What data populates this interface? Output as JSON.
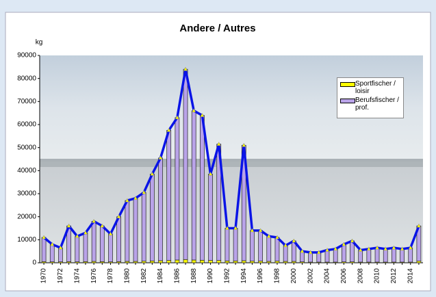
{
  "chart_data": {
    "type": "stacked-bar-line",
    "title": "Andere / Autres",
    "y_label": "kg",
    "categories": [
      "1970",
      null,
      "1972",
      null,
      "1974",
      null,
      "1976",
      null,
      "1978",
      null,
      "1980",
      null,
      "1982",
      null,
      "1984",
      null,
      "1986",
      null,
      "1988",
      null,
      "1990",
      null,
      "1992",
      null,
      "1994",
      null,
      "1996",
      null,
      "1998",
      null,
      "2000",
      null,
      "2002",
      null,
      "2004",
      null,
      "2006",
      null,
      "2008",
      null,
      "2010",
      null,
      "2012",
      null,
      "2014",
      null
    ],
    "series": [
      {
        "name": "Sportfischer / loisir",
        "color": "#ffff00",
        "values": [
          500,
          400,
          400,
          500,
          400,
          500,
          600,
          500,
          400,
          500,
          600,
          600,
          700,
          800,
          900,
          1000,
          1200,
          1400,
          1200,
          1100,
          1000,
          1000,
          800,
          800,
          900,
          700,
          700,
          600,
          700,
          600,
          600,
          400,
          300,
          300,
          300,
          300,
          400,
          400,
          300,
          300,
          300,
          300,
          300,
          300,
          300,
          700
        ]
      },
      {
        "name": "Berufsfischer / prof.",
        "color": "#b9a3e8",
        "values": [
          10500,
          7600,
          6100,
          15500,
          11100,
          12500,
          17400,
          15500,
          12100,
          19500,
          26400,
          27400,
          29800,
          37700,
          44600,
          56500,
          61800,
          82600,
          64800,
          62900,
          37500,
          50500,
          14200,
          14200,
          50100,
          13300,
          13300,
          10900,
          10300,
          6900,
          8900,
          4600,
          4200,
          4200,
          5200,
          5700,
          7600,
          9100,
          5200,
          5700,
          6200,
          5700,
          6200,
          5700,
          6200,
          15300
        ]
      }
    ],
    "line_color": "#0a14e6",
    "ylim": [
      0,
      90000
    ],
    "yticks": [
      0,
      10000,
      20000,
      30000,
      40000,
      50000,
      60000,
      70000,
      80000,
      90000
    ]
  }
}
